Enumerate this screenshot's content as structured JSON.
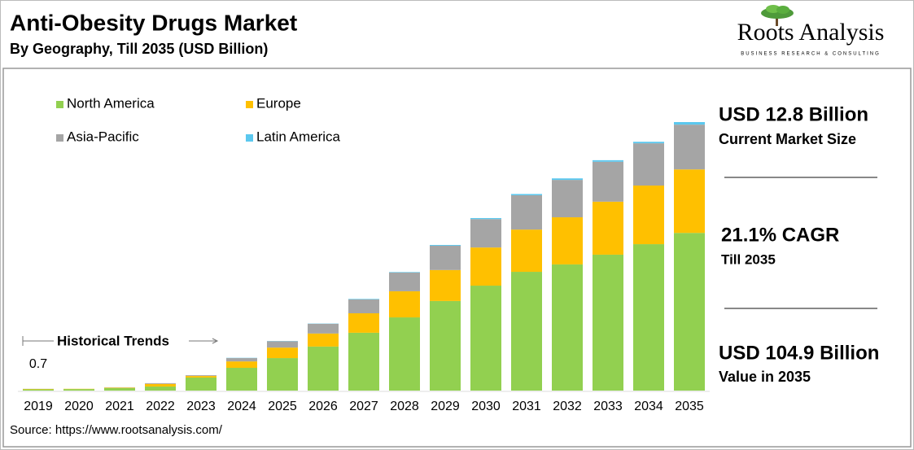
{
  "header": {
    "title": "Anti-Obesity Drugs Market",
    "subtitle": "By Geography, Till 2035 (USD Billion)",
    "logo": "Roots Analysis",
    "logo_tagline": "BUSINESS RESEARCH & CONSULTING"
  },
  "chart_data": {
    "type": "stacked_bar",
    "categories": [
      "2019",
      "2020",
      "2021",
      "2022",
      "2023",
      "2024",
      "2025",
      "2026",
      "2027",
      "2028",
      "2029",
      "2030",
      "2031",
      "2032",
      "2033",
      "2034",
      "2035"
    ],
    "series": [
      {
        "name": "North America",
        "color": "#92d050",
        "values": [
          0.5,
          0.6,
          1.0,
          1.6,
          5.1,
          8.9,
          12.7,
          17.2,
          22.6,
          28.6,
          35.0,
          41.0,
          46.4,
          49.3,
          53.1,
          57.2,
          61.6
        ]
      },
      {
        "name": "Europe",
        "color": "#ffc000",
        "values": [
          0.15,
          0.1,
          0.2,
          1.0,
          0.6,
          2.5,
          4.1,
          5.1,
          7.6,
          10.2,
          12.1,
          14.9,
          16.5,
          18.4,
          20.7,
          22.9,
          24.8
        ]
      },
      {
        "name": "Asia-Pacific",
        "color": "#a5a5a5",
        "values": [
          0.05,
          0,
          0.1,
          0.3,
          0.3,
          1.3,
          2.5,
          3.8,
          5.4,
          7.3,
          9.5,
          11.1,
          13.4,
          14.6,
          15.6,
          16.5,
          17.5
        ]
      },
      {
        "name": "Latin America",
        "color": "#5bc8ef",
        "values": [
          0,
          0,
          0,
          0,
          0,
          0.1,
          0.1,
          0.1,
          0.2,
          0.2,
          0.3,
          0.4,
          0.5,
          0.6,
          0.6,
          0.6,
          1.0
        ]
      }
    ],
    "total_label": {
      "category": "2019",
      "value": 0.7
    },
    "annotation": "Historical Trends",
    "legend": "top-left"
  },
  "side_panel": [
    {
      "headline": "USD 12.8 Billion",
      "caption": "Current Market Size"
    },
    {
      "headline": "21.1% CAGR",
      "caption": "Till 2035"
    },
    {
      "headline": "USD 104.9 Billion",
      "caption": "Value in 2035"
    }
  ],
  "source": "Source: https://www.rootsanalysis.com/"
}
